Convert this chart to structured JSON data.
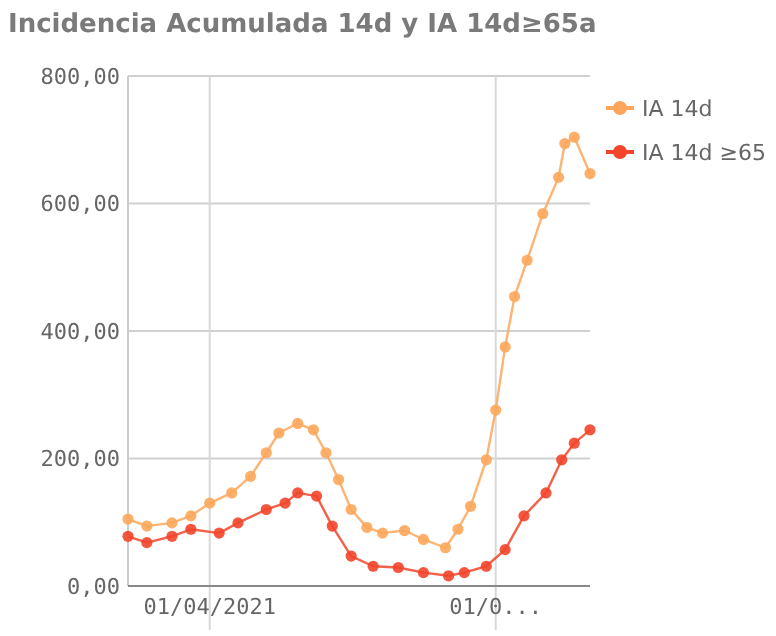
{
  "chart_data": {
    "type": "line",
    "title": "Incidencia Acumulada 14d y IA 14d≥65a",
    "xlim": [
      "2021-03-06",
      "2021-07-31"
    ],
    "xticks": [
      {
        "value": "2021-04-01",
        "label": "01/04/2021"
      },
      {
        "value": "2021-07-01",
        "label": "01/0..."
      }
    ],
    "ylim": [
      0,
      800
    ],
    "yticks": [
      {
        "value": 0,
        "label": "0,00"
      },
      {
        "value": 200,
        "label": "200,00"
      },
      {
        "value": 400,
        "label": "400,00"
      },
      {
        "value": 600,
        "label": "600,00"
      },
      {
        "value": 800,
        "label": "800,00"
      }
    ],
    "grid": true,
    "legend": "top right",
    "marker": "circle",
    "line_style": "solid",
    "series": [
      {
        "name": "IA 14d",
        "color": "#fca75c",
        "x": [
          "2021-03-06",
          "2021-03-12",
          "2021-03-20",
          "2021-03-26",
          "2021-04-01",
          "2021-04-08",
          "2021-04-14",
          "2021-04-19",
          "2021-04-23",
          "2021-04-29",
          "2021-05-04",
          "2021-05-08",
          "2021-05-12",
          "2021-05-16",
          "2021-05-21",
          "2021-05-26",
          "2021-06-02",
          "2021-06-08",
          "2021-06-15",
          "2021-06-19",
          "2021-06-23",
          "2021-06-28",
          "2021-07-01",
          "2021-07-04",
          "2021-07-07",
          "2021-07-11",
          "2021-07-16",
          "2021-07-21",
          "2021-07-23",
          "2021-07-26",
          "2021-07-31"
        ],
        "values": [
          105,
          94,
          99,
          110,
          130,
          146,
          172,
          209,
          240,
          255,
          245,
          209,
          167,
          120,
          92,
          83,
          87,
          73,
          60,
          89,
          125,
          198,
          276,
          375,
          454,
          511,
          584,
          641,
          694,
          704,
          647
        ]
      },
      {
        "name": "IA 14d ≥65",
        "color": "#f2452b",
        "x": [
          "2021-03-06",
          "2021-03-12",
          "2021-03-20",
          "2021-03-26",
          "2021-04-04",
          "2021-04-10",
          "2021-04-19",
          "2021-04-25",
          "2021-04-29",
          "2021-05-05",
          "2021-05-10",
          "2021-05-16",
          "2021-05-23",
          "2021-05-31",
          "2021-06-08",
          "2021-06-16",
          "2021-06-21",
          "2021-06-28",
          "2021-07-04",
          "2021-07-10",
          "2021-07-17",
          "2021-07-22",
          "2021-07-26",
          "2021-07-31"
        ],
        "values": [
          78,
          68,
          78,
          89,
          83,
          99,
          120,
          130,
          146,
          141,
          94,
          47,
          31,
          29,
          21,
          16,
          21,
          31,
          57,
          110,
          146,
          198,
          224,
          245
        ]
      }
    ]
  }
}
